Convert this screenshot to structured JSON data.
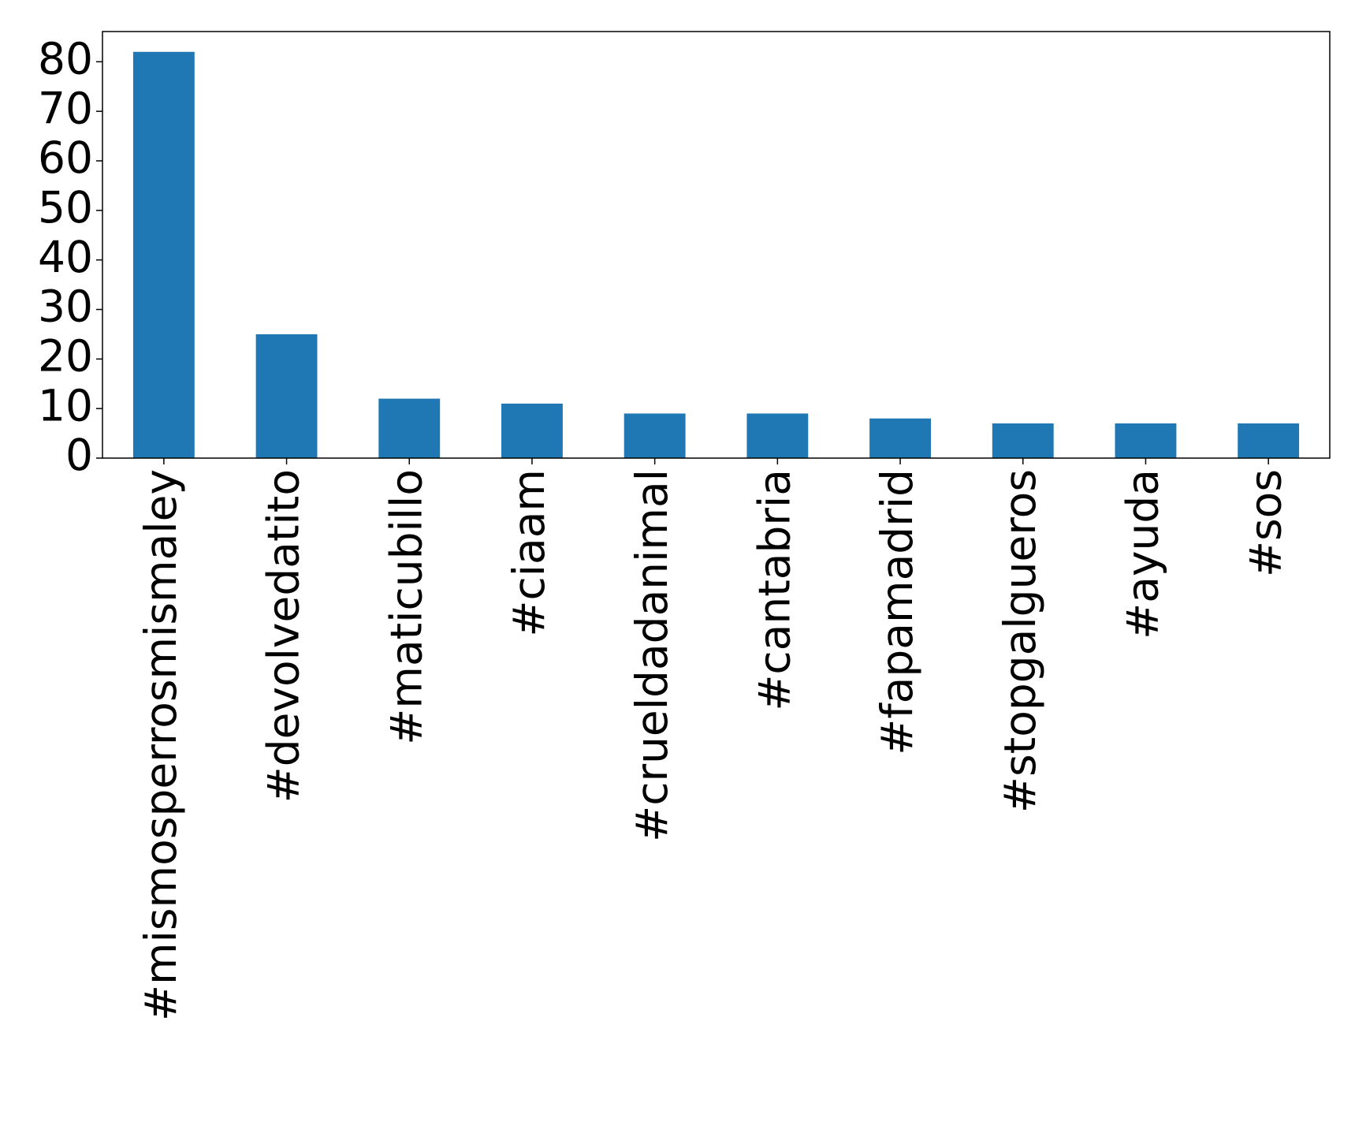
{
  "chart_data": {
    "type": "bar",
    "categories": [
      "#mismosperrosmismaley",
      "#devolvedatito",
      "#maticubillo",
      "#ciaam",
      "#crueldadanimal",
      "#cantabria",
      "#fapamadrid",
      "#stopgalgueros",
      "#ayuda",
      "#sos"
    ],
    "values": [
      82,
      25,
      12,
      11,
      9,
      9,
      8,
      7,
      7,
      7
    ],
    "color": "#1f77b4",
    "ylim": [
      0,
      86.1
    ],
    "yticks": [
      0,
      10,
      20,
      30,
      40,
      50,
      60,
      70,
      80
    ],
    "grid": false
  }
}
